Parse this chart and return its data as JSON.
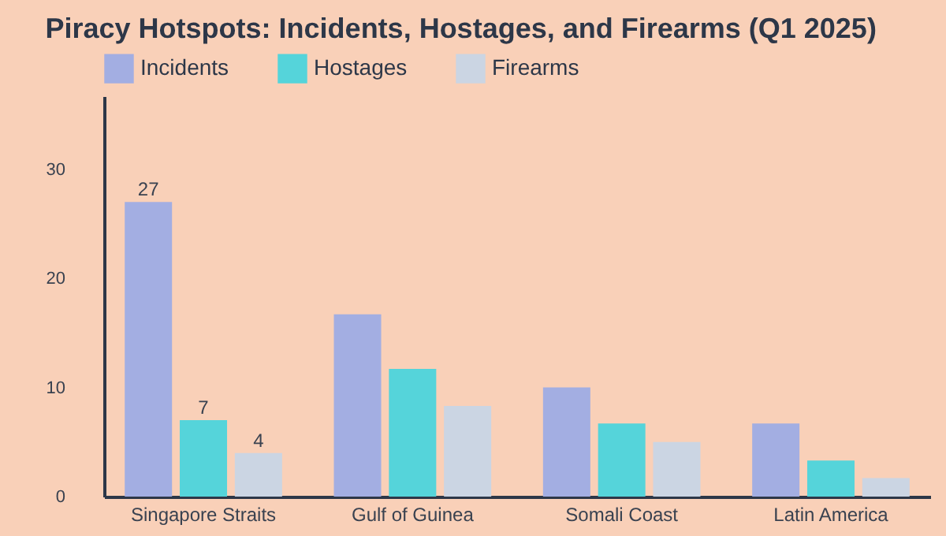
{
  "chart_data": {
    "type": "bar",
    "title": "Piracy Hotspots: Incidents, Hostages, and Firearms (Q1 2025)",
    "categories": [
      "Singapore Straits",
      "Gulf of Guinea",
      "Somali Coast",
      "Latin America"
    ],
    "series": [
      {
        "name": "Incidents",
        "color": "#a3aee2",
        "values": [
          27,
          16.7,
          10,
          6.7
        ],
        "value_labels": [
          "27",
          null,
          null,
          null
        ]
      },
      {
        "name": "Hostages",
        "color": "#55d4da",
        "values": [
          7,
          11.7,
          6.7,
          3.3
        ],
        "value_labels": [
          "7",
          null,
          null,
          null
        ]
      },
      {
        "name": "Firearms",
        "color": "#cbd5e3",
        "values": [
          4,
          8.3,
          5,
          1.7
        ],
        "value_labels": [
          "4",
          null,
          null,
          null
        ]
      }
    ],
    "ylim": [
      0,
      36.7
    ],
    "yticks": [
      0,
      10,
      20,
      30
    ],
    "grid": false,
    "legend": "top left"
  }
}
